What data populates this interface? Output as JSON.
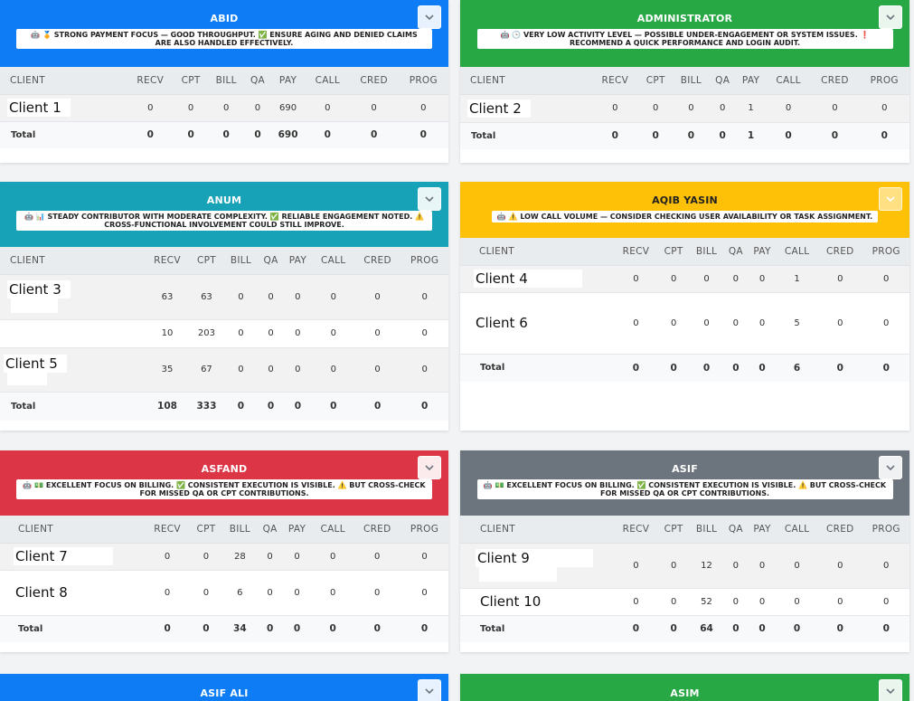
{
  "columns": [
    "CLIENT",
    "RECV",
    "CPT",
    "BILL",
    "QA",
    "PAY",
    "CALL",
    "CRED",
    "PROG"
  ],
  "total_label": "Total",
  "cards": [
    {
      "title": "ABID",
      "insight": "🤖 🏅 STRONG PAYMENT FOCUS — GOOD THROUGHPUT. ✅ ENSURE AGING AND DENIED CLAIMS ARE ALSO HANDLED EFFECTIVELY.",
      "rows": [
        {
          "client": "Client 1",
          "values": [
            "0",
            "0",
            "0",
            "0",
            "690",
            "0",
            "0",
            "0"
          ]
        }
      ],
      "total": [
        "0",
        "0",
        "0",
        "0",
        "690",
        "0",
        "0",
        "0"
      ]
    },
    {
      "title": "ADMINISTRATOR",
      "insight": "🤖 🕒 VERY LOW ACTIVITY LEVEL — POSSIBLE UNDER-ENGAGEMENT OR SYSTEM ISSUES. ❗ RECOMMEND A QUICK PERFORMANCE AND LOGIN AUDIT.",
      "rows": [
        {
          "client": "Client 2",
          "values": [
            "0",
            "0",
            "0",
            "0",
            "1",
            "0",
            "0",
            "0"
          ]
        }
      ],
      "total": [
        "0",
        "0",
        "0",
        "0",
        "1",
        "0",
        "0",
        "0"
      ]
    },
    {
      "title": "ANUM",
      "insight": "🤖 📊 STEADY CONTRIBUTOR WITH MODERATE COMPLEXITY. ✅ RELIABLE ENGAGEMENT NOTED. ⚠️ CROSS-FUNCTIONAL INVOLVEMENT COULD STILL IMPROVE.",
      "rows": [
        {
          "client": "Client 3",
          "values": [
            "63",
            "63",
            "0",
            "0",
            "0",
            "0",
            "0",
            "0"
          ]
        },
        {
          "client": "",
          "values": [
            "10",
            "203",
            "0",
            "0",
            "0",
            "0",
            "0",
            "0"
          ]
        },
        {
          "client": "Client 5",
          "values": [
            "35",
            "67",
            "0",
            "0",
            "0",
            "0",
            "0",
            "0"
          ]
        }
      ],
      "total": [
        "108",
        "333",
        "0",
        "0",
        "0",
        "0",
        "0",
        "0"
      ]
    },
    {
      "title": "AQIB YASIN",
      "insight": "🤖 ⚠️ LOW CALL VOLUME — CONSIDER CHECKING USER AVAILABILITY OR TASK ASSIGNMENT.",
      "rows": [
        {
          "client": "Client 4",
          "values": [
            "0",
            "0",
            "0",
            "0",
            "0",
            "1",
            "0",
            "0"
          ]
        },
        {
          "client": "Client 6",
          "values": [
            "0",
            "0",
            "0",
            "0",
            "0",
            "5",
            "0",
            "0"
          ]
        }
      ],
      "total": [
        "0",
        "0",
        "0",
        "0",
        "0",
        "6",
        "0",
        "0"
      ]
    },
    {
      "title": "ASFAND",
      "insight": "🤖 💵 EXCELLENT FOCUS ON BILLING. ✅ CONSISTENT EXECUTION IS VISIBLE. ⚠️ BUT CROSS-CHECK FOR MISSED QA OR CPT CONTRIBUTIONS.",
      "rows": [
        {
          "client": "Client 7",
          "values": [
            "0",
            "0",
            "28",
            "0",
            "0",
            "0",
            "0",
            "0"
          ]
        },
        {
          "client": "Client 8",
          "values": [
            "0",
            "0",
            "6",
            "0",
            "0",
            "0",
            "0",
            "0"
          ]
        }
      ],
      "total": [
        "0",
        "0",
        "34",
        "0",
        "0",
        "0",
        "0",
        "0"
      ]
    },
    {
      "title": "ASIF",
      "insight": "🤖 💵 EXCELLENT FOCUS ON BILLING. ✅ CONSISTENT EXECUTION IS VISIBLE. ⚠️ BUT CROSS-CHECK FOR MISSED QA OR CPT CONTRIBUTIONS.",
      "rows": [
        {
          "client": "Client 9",
          "values": [
            "0",
            "0",
            "12",
            "0",
            "0",
            "0",
            "0",
            "0"
          ]
        },
        {
          "client": "Client 10",
          "values": [
            "0",
            "0",
            "52",
            "0",
            "0",
            "0",
            "0",
            "0"
          ]
        }
      ],
      "total": [
        "0",
        "0",
        "64",
        "0",
        "0",
        "0",
        "0",
        "0"
      ]
    },
    {
      "title": "ASIF ALI"
    },
    {
      "title": "ASIM"
    }
  ],
  "colors": {
    "blue": "#0d7cf5",
    "green": "#28a745",
    "teal": "#17a2b8",
    "yellow": "#ffc107",
    "red": "#dc3545",
    "gray": "#6c757d"
  },
  "icons": {
    "toggle": "chevron-down-icon"
  }
}
